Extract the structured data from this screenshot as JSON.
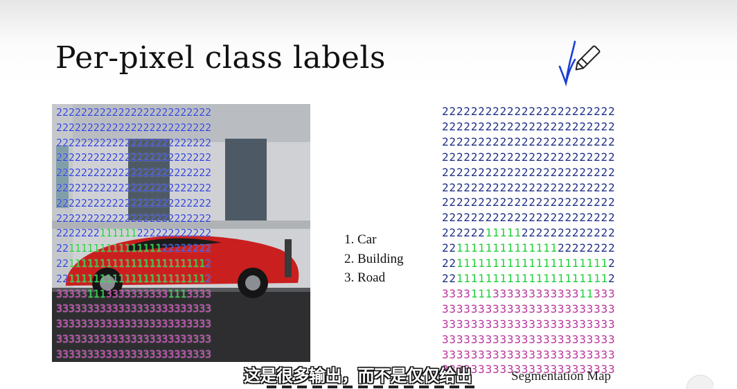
{
  "slide": {
    "title": "Per-pixel class labels",
    "legend": [
      "1. Car",
      "2. Building",
      "3. Road"
    ],
    "caption": "Segmentation Map",
    "subtitle": "这是很多输出，而不是仅仅给出"
  },
  "icons": {
    "annotation": "pen-icon",
    "arrow": "hand-drawn-arrow-icon"
  },
  "colors": {
    "building_label": "#1f2f86",
    "car_label": "#1fcf3a",
    "road_label": "#b8339b",
    "ink_arrow": "#1b3fd6"
  },
  "segmentation_map": [
    "222222222222222222222222",
    "222222222222222222222222",
    "222222222222222222222222",
    "222222222222222222222222",
    "222222222222222222222222",
    "222222222222222222222222",
    "222222222222222222222222",
    "222222222222222222222222",
    "222222111112222222222222",
    "221111111111111122222222",
    "221111111111111111111112",
    "221111111111111111111112",
    "333311133333333333311333",
    "333333333333333333333333",
    "333333333333333333333333",
    "333333333333333333333333",
    "333333333333333333333333",
    "333333333333333333333333"
  ],
  "photo_overlay": [
    "2222222222222222222222222",
    "2222222222222222222222222",
    "2222222222222222222222222",
    "2222222222222222222222222",
    "2222222222222222222222222",
    "2222222222222222222222222",
    "2222222222222222222222222",
    "2222222222222222222222222",
    "2222222111111222222222222",
    "2211111111111111122222222",
    "2211111111111111111111112",
    "2211111111111111111111112",
    "3333311133333333331113333",
    "3333333333333333333333333",
    "3333333333333333333333333",
    "3333333333333333333333333",
    "3333333333333333333333333"
  ]
}
